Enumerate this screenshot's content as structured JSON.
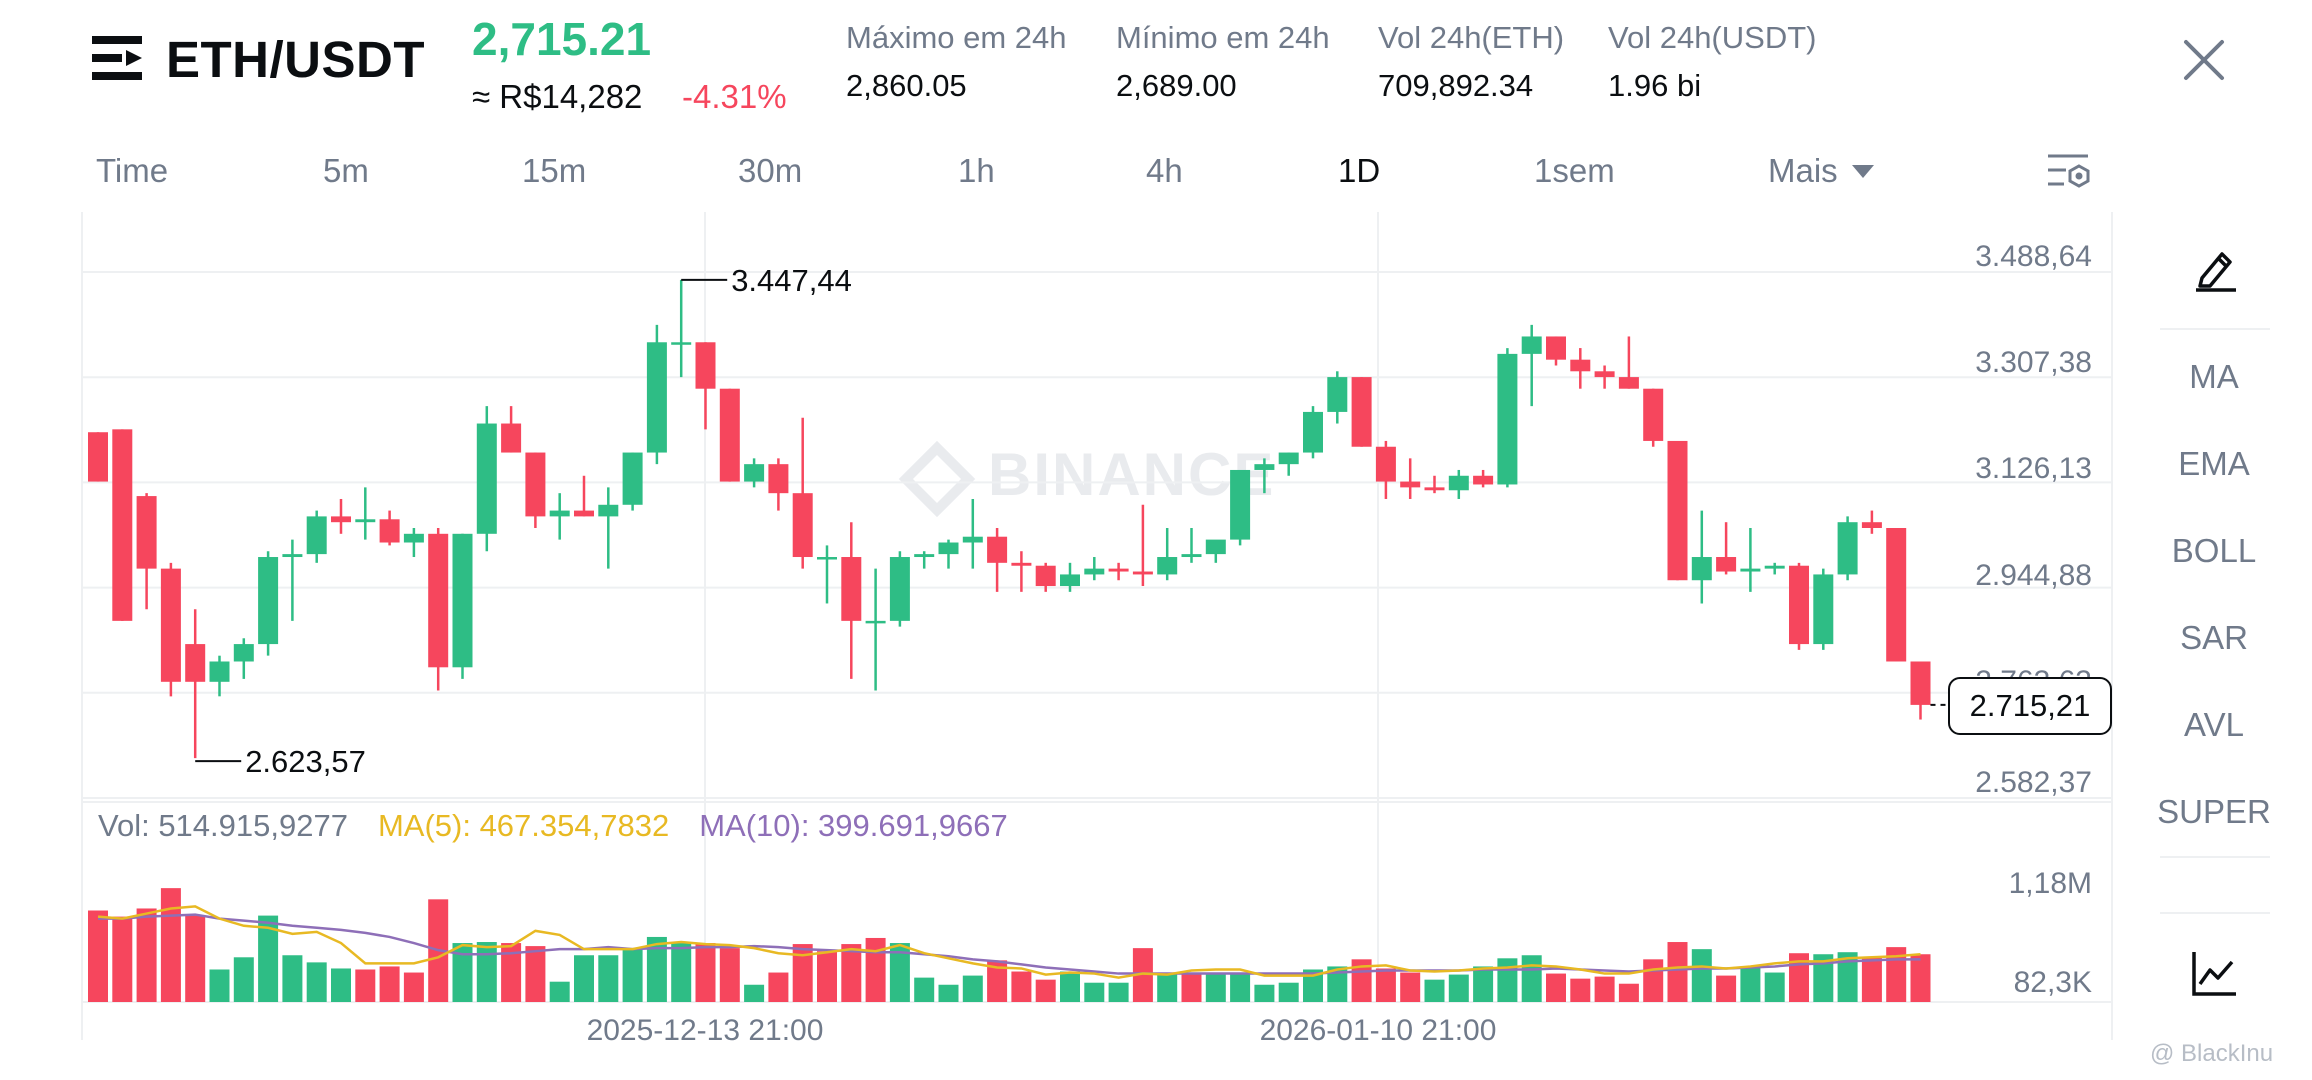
{
  "header": {
    "pair": "ETH/USDT",
    "last_price": "2,715.21",
    "fiat_price": "≈ R$14,282",
    "change_pct": "-4.31%",
    "stats": [
      {
        "label": "Máximo em 24h",
        "value": "2,860.05"
      },
      {
        "label": "Mínimo em 24h",
        "value": "2,689.00"
      },
      {
        "label": "Vol 24h(ETH)",
        "value": "709,892.34"
      },
      {
        "label": "Vol 24h(USDT)",
        "value": "1.96 bi"
      }
    ]
  },
  "intervals": {
    "tabs": [
      "Time",
      "5m",
      "15m",
      "30m",
      "1h",
      "4h",
      "1D",
      "1sem",
      "Mais"
    ],
    "active": "1D"
  },
  "side_panel": {
    "indicators": [
      "MA",
      "EMA",
      "BOLL",
      "SAR",
      "AVL",
      "SUPER"
    ]
  },
  "chart": {
    "watermark": "BINANCE",
    "current_price_label": "2.715,21",
    "high_label": "3.447,44",
    "low_label": "2.623,57",
    "volume_legend": {
      "vol": "Vol: 514.915,9277",
      "ma5": "MA(5): 467.354,7832",
      "ma10": "MA(10): 399.691,9667"
    },
    "credit": "@ BlackInu"
  },
  "colors": {
    "up": "#2ebd85",
    "down": "#f6465d",
    "ma5": "#e8b923",
    "ma10": "#8e6fb8",
    "text_muted": "#707a8a"
  },
  "chart_data": {
    "type": "candlestick",
    "price_axis_ticks": [
      "3.488,64",
      "3.307,38",
      "3.126,13",
      "2.944,88",
      "2.763,63",
      "2.582,37"
    ],
    "price_axis_values": [
      3488.64,
      3307.38,
      3126.13,
      2944.88,
      2763.63,
      2582.37
    ],
    "volume_axis_ticks": [
      "1,18M",
      "82,3K"
    ],
    "x_tick_labels": [
      "2025-12-13 21:00",
      "2026-01-10 21:00"
    ],
    "candles_ohlc": [
      [
        3185,
        3185,
        3100,
        3100
      ],
      [
        3190,
        3190,
        2860,
        2860
      ],
      [
        3075,
        3080,
        2880,
        2950
      ],
      [
        2950,
        2960,
        2730,
        2755
      ],
      [
        2820,
        2880,
        2623.57,
        2755
      ],
      [
        2755,
        2800,
        2730,
        2790
      ],
      [
        2790,
        2830,
        2760,
        2820
      ],
      [
        2820,
        2980,
        2800,
        2970
      ],
      [
        2970,
        3000,
        2860,
        2975
      ],
      [
        2975,
        3050,
        2960,
        3040
      ],
      [
        3040,
        3070,
        3010,
        3030
      ],
      [
        3030,
        3090,
        3000,
        3035
      ],
      [
        3035,
        3050,
        2990,
        2995
      ],
      [
        2995,
        3020,
        2970,
        3010
      ],
      [
        3010,
        3020,
        2740,
        2780
      ],
      [
        2780,
        3010,
        2760,
        3010
      ],
      [
        3010,
        3230,
        2980,
        3200
      ],
      [
        3200,
        3230,
        3150,
        3150
      ],
      [
        3150,
        3150,
        3020,
        3040
      ],
      [
        3040,
        3080,
        3000,
        3050
      ],
      [
        3050,
        3110,
        3040,
        3040
      ],
      [
        3040,
        3090,
        2950,
        3060
      ],
      [
        3060,
        3150,
        3050,
        3150
      ],
      [
        3150,
        3370,
        3130,
        3340
      ],
      [
        3340,
        3447.44,
        3280,
        3340
      ],
      [
        3340,
        3340,
        3190,
        3260
      ],
      [
        3260,
        3260,
        3100,
        3100
      ],
      [
        3100,
        3140,
        3090,
        3130
      ],
      [
        3130,
        3140,
        3050,
        3080
      ],
      [
        3080,
        3210,
        2950,
        2970
      ],
      [
        2970,
        2990,
        2890,
        2970
      ],
      [
        2970,
        3030,
        2760,
        2860
      ],
      [
        2860,
        2950,
        2740,
        2860
      ],
      [
        2860,
        2980,
        2850,
        2970
      ],
      [
        2970,
        2980,
        2950,
        2975
      ],
      [
        2975,
        3000,
        2950,
        2995
      ],
      [
        2995,
        3070,
        2950,
        3005
      ],
      [
        3005,
        3020,
        2910,
        2960
      ],
      [
        2960,
        2980,
        2910,
        2955
      ],
      [
        2955,
        2960,
        2910,
        2920
      ],
      [
        2920,
        2960,
        2910,
        2940
      ],
      [
        2940,
        2970,
        2930,
        2950
      ],
      [
        2950,
        2960,
        2930,
        2945
      ],
      [
        2945,
        3060,
        2920,
        2940
      ],
      [
        2940,
        3020,
        2930,
        2970
      ],
      [
        2970,
        3020,
        2960,
        2975
      ],
      [
        2975,
        2990,
        2960,
        3000
      ],
      [
        3000,
        3120,
        2990,
        3120
      ],
      [
        3120,
        3140,
        3080,
        3130
      ],
      [
        3130,
        3150,
        3110,
        3150
      ],
      [
        3150,
        3230,
        3140,
        3220
      ],
      [
        3220,
        3290,
        3200,
        3280
      ],
      [
        3280,
        3280,
        3160,
        3160
      ],
      [
        3160,
        3170,
        3070,
        3100
      ],
      [
        3100,
        3140,
        3070,
        3090
      ],
      [
        3090,
        3110,
        3080,
        3085
      ],
      [
        3085,
        3120,
        3070,
        3110
      ],
      [
        3110,
        3120,
        3090,
        3095
      ],
      [
        3095,
        3330,
        3090,
        3320
      ],
      [
        3320,
        3370,
        3230,
        3350
      ],
      [
        3350,
        3350,
        3300,
        3310
      ],
      [
        3310,
        3330,
        3260,
        3290
      ],
      [
        3290,
        3300,
        3260,
        3280
      ],
      [
        3280,
        3350,
        3260,
        3260
      ],
      [
        3260,
        3260,
        3160,
        3170
      ],
      [
        3170,
        3170,
        2930,
        2930
      ],
      [
        2930,
        3050,
        2890,
        2970
      ],
      [
        2970,
        3030,
        2940,
        2945
      ],
      [
        2945,
        3020,
        2910,
        2950
      ],
      [
        2950,
        2960,
        2940,
        2955
      ],
      [
        2955,
        2960,
        2810,
        2820
      ],
      [
        2820,
        2950,
        2810,
        2940
      ],
      [
        2940,
        3040,
        2930,
        3030
      ],
      [
        3030,
        3050,
        3010,
        3020
      ],
      [
        3020,
        3020,
        2790,
        2790
      ],
      [
        2790,
        2790,
        2690,
        2715.21
      ]
    ],
    "volume": [
      [
        880000,
        "down"
      ],
      [
        820000,
        "down"
      ],
      [
        900000,
        "down"
      ],
      [
        1100000,
        "down"
      ],
      [
        830000,
        "down"
      ],
      [
        300000,
        "up"
      ],
      [
        420000,
        "up"
      ],
      [
        830000,
        "up"
      ],
      [
        440000,
        "up"
      ],
      [
        370000,
        "up"
      ],
      [
        310000,
        "up"
      ],
      [
        300000,
        "down"
      ],
      [
        330000,
        "down"
      ],
      [
        270000,
        "down"
      ],
      [
        990000,
        "down"
      ],
      [
        560000,
        "up"
      ],
      [
        570000,
        "up"
      ],
      [
        560000,
        "down"
      ],
      [
        530000,
        "down"
      ],
      [
        180000,
        "up"
      ],
      [
        440000,
        "up"
      ],
      [
        440000,
        "up"
      ],
      [
        500000,
        "up"
      ],
      [
        620000,
        "up"
      ],
      [
        560000,
        "up"
      ],
      [
        560000,
        "down"
      ],
      [
        510000,
        "down"
      ],
      [
        150000,
        "up"
      ],
      [
        270000,
        "down"
      ],
      [
        550000,
        "down"
      ],
      [
        480000,
        "down"
      ],
      [
        550000,
        "down"
      ],
      [
        610000,
        "down"
      ],
      [
        560000,
        "up"
      ],
      [
        220000,
        "up"
      ],
      [
        150000,
        "up"
      ],
      [
        240000,
        "up"
      ],
      [
        390000,
        "down"
      ],
      [
        280000,
        "down"
      ],
      [
        200000,
        "down"
      ],
      [
        280000,
        "up"
      ],
      [
        170000,
        "up"
      ],
      [
        170000,
        "up"
      ],
      [
        510000,
        "down"
      ],
      [
        270000,
        "up"
      ],
      [
        260000,
        "down"
      ],
      [
        260000,
        "up"
      ],
      [
        270000,
        "up"
      ],
      [
        150000,
        "up"
      ],
      [
        170000,
        "up"
      ],
      [
        300000,
        "up"
      ],
      [
        330000,
        "up"
      ],
      [
        400000,
        "down"
      ],
      [
        310000,
        "down"
      ],
      [
        270000,
        "down"
      ],
      [
        200000,
        "up"
      ],
      [
        250000,
        "up"
      ],
      [
        330000,
        "up"
      ],
      [
        410000,
        "up"
      ],
      [
        440000,
        "up"
      ],
      [
        260000,
        "down"
      ],
      [
        210000,
        "down"
      ],
      [
        230000,
        "down"
      ],
      [
        160000,
        "down"
      ],
      [
        400000,
        "down"
      ],
      [
        570000,
        "down"
      ],
      [
        500000,
        "up"
      ],
      [
        240000,
        "down"
      ],
      [
        330000,
        "up"
      ],
      [
        270000,
        "up"
      ],
      [
        460000,
        "down"
      ],
      [
        450000,
        "up"
      ],
      [
        470000,
        "up"
      ],
      [
        420000,
        "down"
      ],
      [
        520000,
        "down"
      ],
      [
        450000,
        "down"
      ]
    ],
    "ma5": [
      820000,
      800000,
      850000,
      900000,
      920000,
      800000,
      730000,
      710000,
      650000,
      670000,
      560000,
      360000,
      360000,
      360000,
      420000,
      540000,
      520000,
      530000,
      680000,
      640000,
      500000,
      500000,
      500000,
      550000,
      570000,
      550000,
      540000,
      510000,
      460000,
      440000,
      470000,
      500000,
      480000,
      540000,
      460000,
      410000,
      360000,
      320000,
      310000,
      250000,
      270000,
      260000,
      220000,
      260000,
      250000,
      290000,
      300000,
      300000,
      240000,
      240000,
      240000,
      300000,
      330000,
      340000,
      290000,
      280000,
      290000,
      310000,
      320000,
      340000,
      330000,
      300000,
      260000,
      260000,
      300000,
      320000,
      330000,
      310000,
      330000,
      360000,
      380000,
      380000,
      410000,
      420000,
      430000,
      450000
    ],
    "ma10": [
      800000,
      800000,
      820000,
      830000,
      840000,
      800000,
      780000,
      760000,
      730000,
      710000,
      690000,
      660000,
      620000,
      560000,
      490000,
      450000,
      450000,
      460000,
      480000,
      500000,
      500000,
      520000,
      500000,
      510000,
      510000,
      520000,
      520000,
      530000,
      520000,
      500000,
      490000,
      480000,
      470000,
      470000,
      450000,
      430000,
      400000,
      380000,
      350000,
      320000,
      300000,
      280000,
      260000,
      260000,
      260000,
      260000,
      260000,
      260000,
      260000,
      260000,
      260000,
      270000,
      280000,
      290000,
      290000,
      290000,
      290000,
      300000,
      300000,
      300000,
      310000,
      300000,
      290000,
      280000,
      290000,
      300000,
      310000,
      310000,
      320000,
      330000,
      350000,
      360000,
      380000,
      390000,
      400000,
      400000
    ]
  }
}
